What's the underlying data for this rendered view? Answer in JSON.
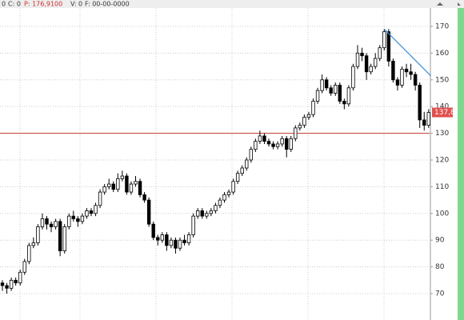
{
  "status_bar": [
    "0",
    "C: 0",
    "P: 176,9100",
    "V: 0",
    "F: 00-00-0000"
  ],
  "chart_data": {
    "type": "candlestick",
    "ylim": [
      60,
      177
    ],
    "yticks": [
      70,
      80,
      90,
      100,
      110,
      120,
      130,
      140,
      150,
      160,
      170
    ],
    "grid": true,
    "up_color": "#ffffff",
    "down_color": "#000000",
    "ohlc": [
      [
        74,
        75,
        71,
        73
      ],
      [
        73,
        74,
        70,
        72
      ],
      [
        72,
        76,
        71,
        75
      ],
      [
        75,
        76,
        73,
        74
      ],
      [
        74,
        79,
        73,
        78
      ],
      [
        78,
        83,
        77,
        82
      ],
      [
        82,
        89,
        81,
        88
      ],
      [
        88,
        91,
        87,
        89
      ],
      [
        89,
        96,
        88,
        95
      ],
      [
        95,
        100,
        94,
        98
      ],
      [
        98,
        99,
        94,
        96
      ],
      [
        96,
        97,
        93,
        95
      ],
      [
        95,
        98,
        94,
        97
      ],
      [
        97,
        98,
        84,
        86
      ],
      [
        86,
        96,
        85,
        95
      ],
      [
        95,
        100,
        94,
        99
      ],
      [
        99,
        101,
        97,
        98
      ],
      [
        98,
        99,
        95,
        97
      ],
      [
        97,
        100,
        96,
        99
      ],
      [
        99,
        102,
        98,
        101
      ],
      [
        101,
        102,
        99,
        100
      ],
      [
        100,
        104,
        99,
        103
      ],
      [
        103,
        109,
        102,
        108
      ],
      [
        108,
        111,
        107,
        110
      ],
      [
        110,
        113,
        109,
        111
      ],
      [
        111,
        112,
        108,
        109
      ],
      [
        109,
        115,
        108,
        113
      ],
      [
        113,
        116,
        112,
        114
      ],
      [
        114,
        115,
        107,
        108
      ],
      [
        108,
        112,
        107,
        111
      ],
      [
        111,
        114,
        110,
        112
      ],
      [
        112,
        113,
        106,
        107
      ],
      [
        107,
        108,
        104,
        105
      ],
      [
        105,
        106,
        95,
        96
      ],
      [
        96,
        97,
        90,
        91
      ],
      [
        91,
        92,
        88,
        90
      ],
      [
        90,
        93,
        89,
        92
      ],
      [
        92,
        93,
        86,
        88
      ],
      [
        88,
        91,
        87,
        90
      ],
      [
        90,
        91,
        85,
        87
      ],
      [
        87,
        91,
        86,
        90
      ],
      [
        90,
        92,
        88,
        89
      ],
      [
        89,
        93,
        88,
        92
      ],
      [
        92,
        100,
        91,
        99
      ],
      [
        99,
        102,
        98,
        101
      ],
      [
        101,
        102,
        98,
        99
      ],
      [
        99,
        101,
        98,
        100
      ],
      [
        100,
        102,
        99,
        101
      ],
      [
        101,
        104,
        100,
        103
      ],
      [
        103,
        106,
        102,
        105
      ],
      [
        105,
        108,
        104,
        107
      ],
      [
        107,
        109,
        106,
        108
      ],
      [
        108,
        113,
        107,
        112
      ],
      [
        112,
        116,
        111,
        115
      ],
      [
        115,
        118,
        114,
        117
      ],
      [
        117,
        121,
        116,
        120
      ],
      [
        120,
        125,
        119,
        124
      ],
      [
        124,
        128,
        123,
        127
      ],
      [
        127,
        131,
        126,
        129
      ],
      [
        129,
        130,
        126,
        127
      ],
      [
        127,
        128,
        125,
        126
      ],
      [
        126,
        127,
        124,
        125
      ],
      [
        125,
        127,
        124,
        126
      ],
      [
        126,
        129,
        125,
        128
      ],
      [
        128,
        129,
        121,
        124
      ],
      [
        124,
        129,
        123,
        128
      ],
      [
        128,
        133,
        127,
        132
      ],
      [
        132,
        134,
        131,
        133
      ],
      [
        133,
        137,
        132,
        136
      ],
      [
        136,
        138,
        135,
        137
      ],
      [
        137,
        143,
        136,
        142
      ],
      [
        142,
        147,
        141,
        146
      ],
      [
        146,
        152,
        145,
        150
      ],
      [
        150,
        151,
        146,
        147
      ],
      [
        147,
        148,
        144,
        145
      ],
      [
        145,
        149,
        144,
        148
      ],
      [
        148,
        149,
        141,
        142
      ],
      [
        142,
        143,
        139,
        141
      ],
      [
        141,
        148,
        140,
        147
      ],
      [
        147,
        156,
        146,
        155
      ],
      [
        155,
        163,
        154,
        160
      ],
      [
        160,
        162,
        157,
        159
      ],
      [
        159,
        160,
        150,
        153
      ],
      [
        153,
        156,
        152,
        155
      ],
      [
        155,
        160,
        154,
        158
      ],
      [
        158,
        163,
        157,
        162
      ],
      [
        162,
        169,
        161,
        168
      ],
      [
        168,
        169,
        155,
        157
      ],
      [
        157,
        158,
        149,
        150
      ],
      [
        150,
        151,
        146,
        148
      ],
      [
        148,
        155,
        147,
        154
      ],
      [
        154,
        156,
        151,
        153
      ],
      [
        153,
        156,
        150,
        152
      ],
      [
        152,
        153,
        146,
        148
      ],
      [
        148,
        149,
        132,
        135
      ],
      [
        135,
        138,
        131,
        133
      ],
      [
        133,
        139,
        132,
        137.8
      ]
    ],
    "hlines": [
      {
        "value": 130,
        "color": "#c0392b"
      }
    ],
    "trendlines": [
      {
        "x": [
          86,
          96.5
        ],
        "y": [
          169,
          151.5
        ],
        "color": "#3a8fd8"
      }
    ],
    "last_price": {
      "value": 137.8,
      "label": "137,8",
      "color": "#e05050"
    }
  }
}
